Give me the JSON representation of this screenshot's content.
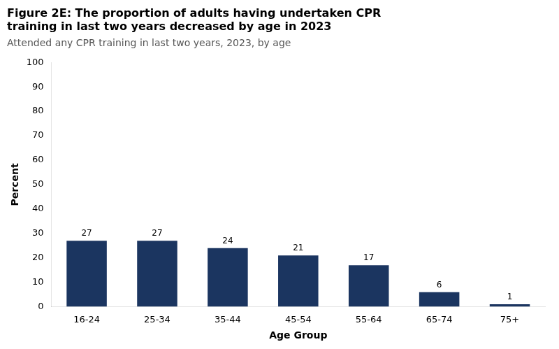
{
  "chart_data": {
    "type": "bar",
    "title": "Figure 2E: The proportion of adults having undertaken CPR\ntraining in last two years decreased by age in 2023",
    "subtitle": "Attended any CPR training in last two years, 2023, by age",
    "categories": [
      "16-24",
      "25-34",
      "35-44",
      "45-54",
      "55-64",
      "65-74",
      "75+"
    ],
    "values": [
      27,
      27,
      24,
      21,
      17,
      6,
      1
    ],
    "color": "#1B3560",
    "xlabel": "Age Group",
    "ylabel": "Percent",
    "ylim": [
      0,
      100
    ],
    "yticks": [
      0,
      10,
      20,
      30,
      40,
      50,
      60,
      70,
      80,
      90,
      100
    ],
    "grid": false,
    "data_labels": true
  }
}
